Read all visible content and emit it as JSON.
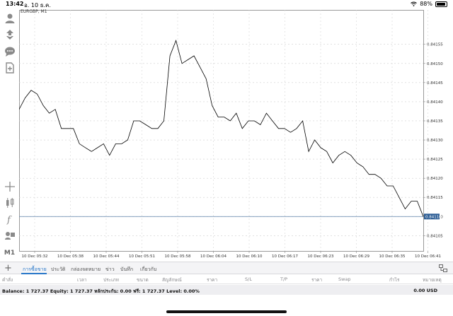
{
  "statusbar": {
    "time": "13:42",
    "date": "อ. 10 ธ.ค.",
    "battery": "88%"
  },
  "chart": {
    "symbol": "EURGBP, M1",
    "current_price": "0.84110"
  },
  "left_tools": {
    "timeframe": "M1"
  },
  "chart_data": {
    "type": "line",
    "title": "EURGBP, M1",
    "x_ticks": [
      "10 Dec 05:32",
      "10 Dec 05:38",
      "10 Dec 05:44",
      "10 Dec 05:51",
      "10 Dec 05:58",
      "10 Dec 06:04",
      "10 Dec 06:10",
      "10 Dec 06:17",
      "10 Dec 06:23",
      "10 Dec 06:29",
      "10 Dec 06:35",
      "10 Dec 06:41"
    ],
    "y_ticks": [
      "0.84155",
      "0.84150",
      "0.84145",
      "0.84140",
      "0.84135",
      "0.84130",
      "0.84125",
      "0.84120",
      "0.84115",
      "0.84110",
      "0.84105"
    ],
    "ylim": [
      0.84101,
      0.84164
    ],
    "current_value": 0.8411,
    "series": [
      {
        "values": [
          0.84138,
          0.84141,
          0.84143,
          0.84142,
          0.84139,
          0.84137,
          0.84138,
          0.84133,
          0.84133,
          0.84133,
          0.84129,
          0.84128,
          0.84127,
          0.84128,
          0.84129,
          0.84126,
          0.84129,
          0.84129,
          0.8413,
          0.84135,
          0.84135,
          0.84134,
          0.84133,
          0.84133,
          0.84135,
          0.84152,
          0.84156,
          0.8415,
          0.84151,
          0.84152,
          0.84149,
          0.84146,
          0.84139,
          0.84136,
          0.84136,
          0.84135,
          0.84137,
          0.84133,
          0.84135,
          0.84135,
          0.84134,
          0.84137,
          0.84135,
          0.84133,
          0.84133,
          0.84132,
          0.84133,
          0.84135,
          0.84127,
          0.8413,
          0.84128,
          0.84127,
          0.84124,
          0.84126,
          0.84127,
          0.84126,
          0.84124,
          0.84123,
          0.84121,
          0.84121,
          0.8412,
          0.84118,
          0.84118,
          0.84115,
          0.84112,
          0.84114,
          0.84114,
          0.8411
        ]
      }
    ],
    "grid": true
  },
  "tabs": {
    "items": [
      "การซื้อขาย",
      "ประวัติ",
      "กล่องจดหมาย",
      "ข่าว",
      "บันทึก",
      "เกี่ยวกับ"
    ]
  },
  "columns": {
    "items": [
      "คำสั่ง",
      "เวลา",
      "ประเภท",
      "ขนาด",
      "สัญลักษณ์",
      "ราคา",
      "S/L",
      "T/P",
      "ราคา",
      "Swap",
      "กำไร",
      "หมายเหตุ"
    ]
  },
  "balance": {
    "summary": "Balance: 1 727.37 Equity: 1 727.37 หลักประกัน: 0.00 ฟรี: 1 727.37 Level: 0.00%",
    "profit": "0.00  USD"
  }
}
